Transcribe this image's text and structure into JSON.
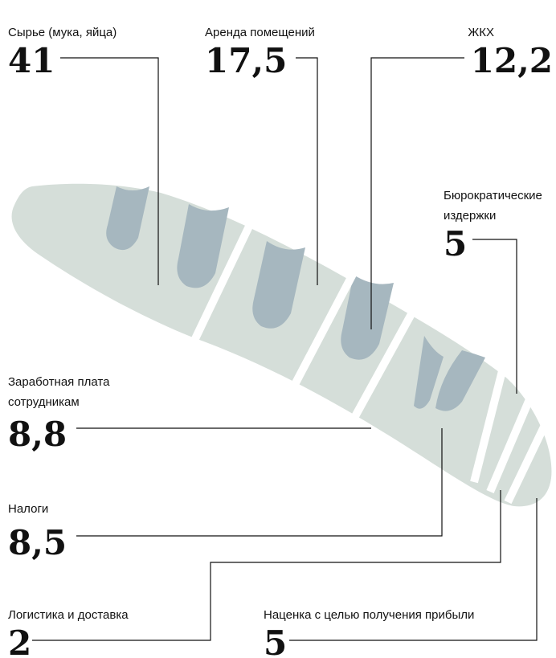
{
  "items": [
    {
      "label": [
        "Сырье (мука, яйца)"
      ],
      "value": "41"
    },
    {
      "label": [
        "Аренда помещений"
      ],
      "value": "17,5"
    },
    {
      "label": [
        "ЖКХ"
      ],
      "value": "12,2"
    },
    {
      "label": [
        "Бюрократические",
        "издержки"
      ],
      "value": "5"
    },
    {
      "label": [
        "Заработная плата",
        "сотрудникам"
      ],
      "value": "8,8"
    },
    {
      "label": [
        "Налоги"
      ],
      "value": "8,5"
    },
    {
      "label": [
        "Логистика и доставка"
      ],
      "value": "2"
    },
    {
      "label": [
        "Наценка с целью получения прибыли"
      ],
      "value": "5"
    }
  ]
}
